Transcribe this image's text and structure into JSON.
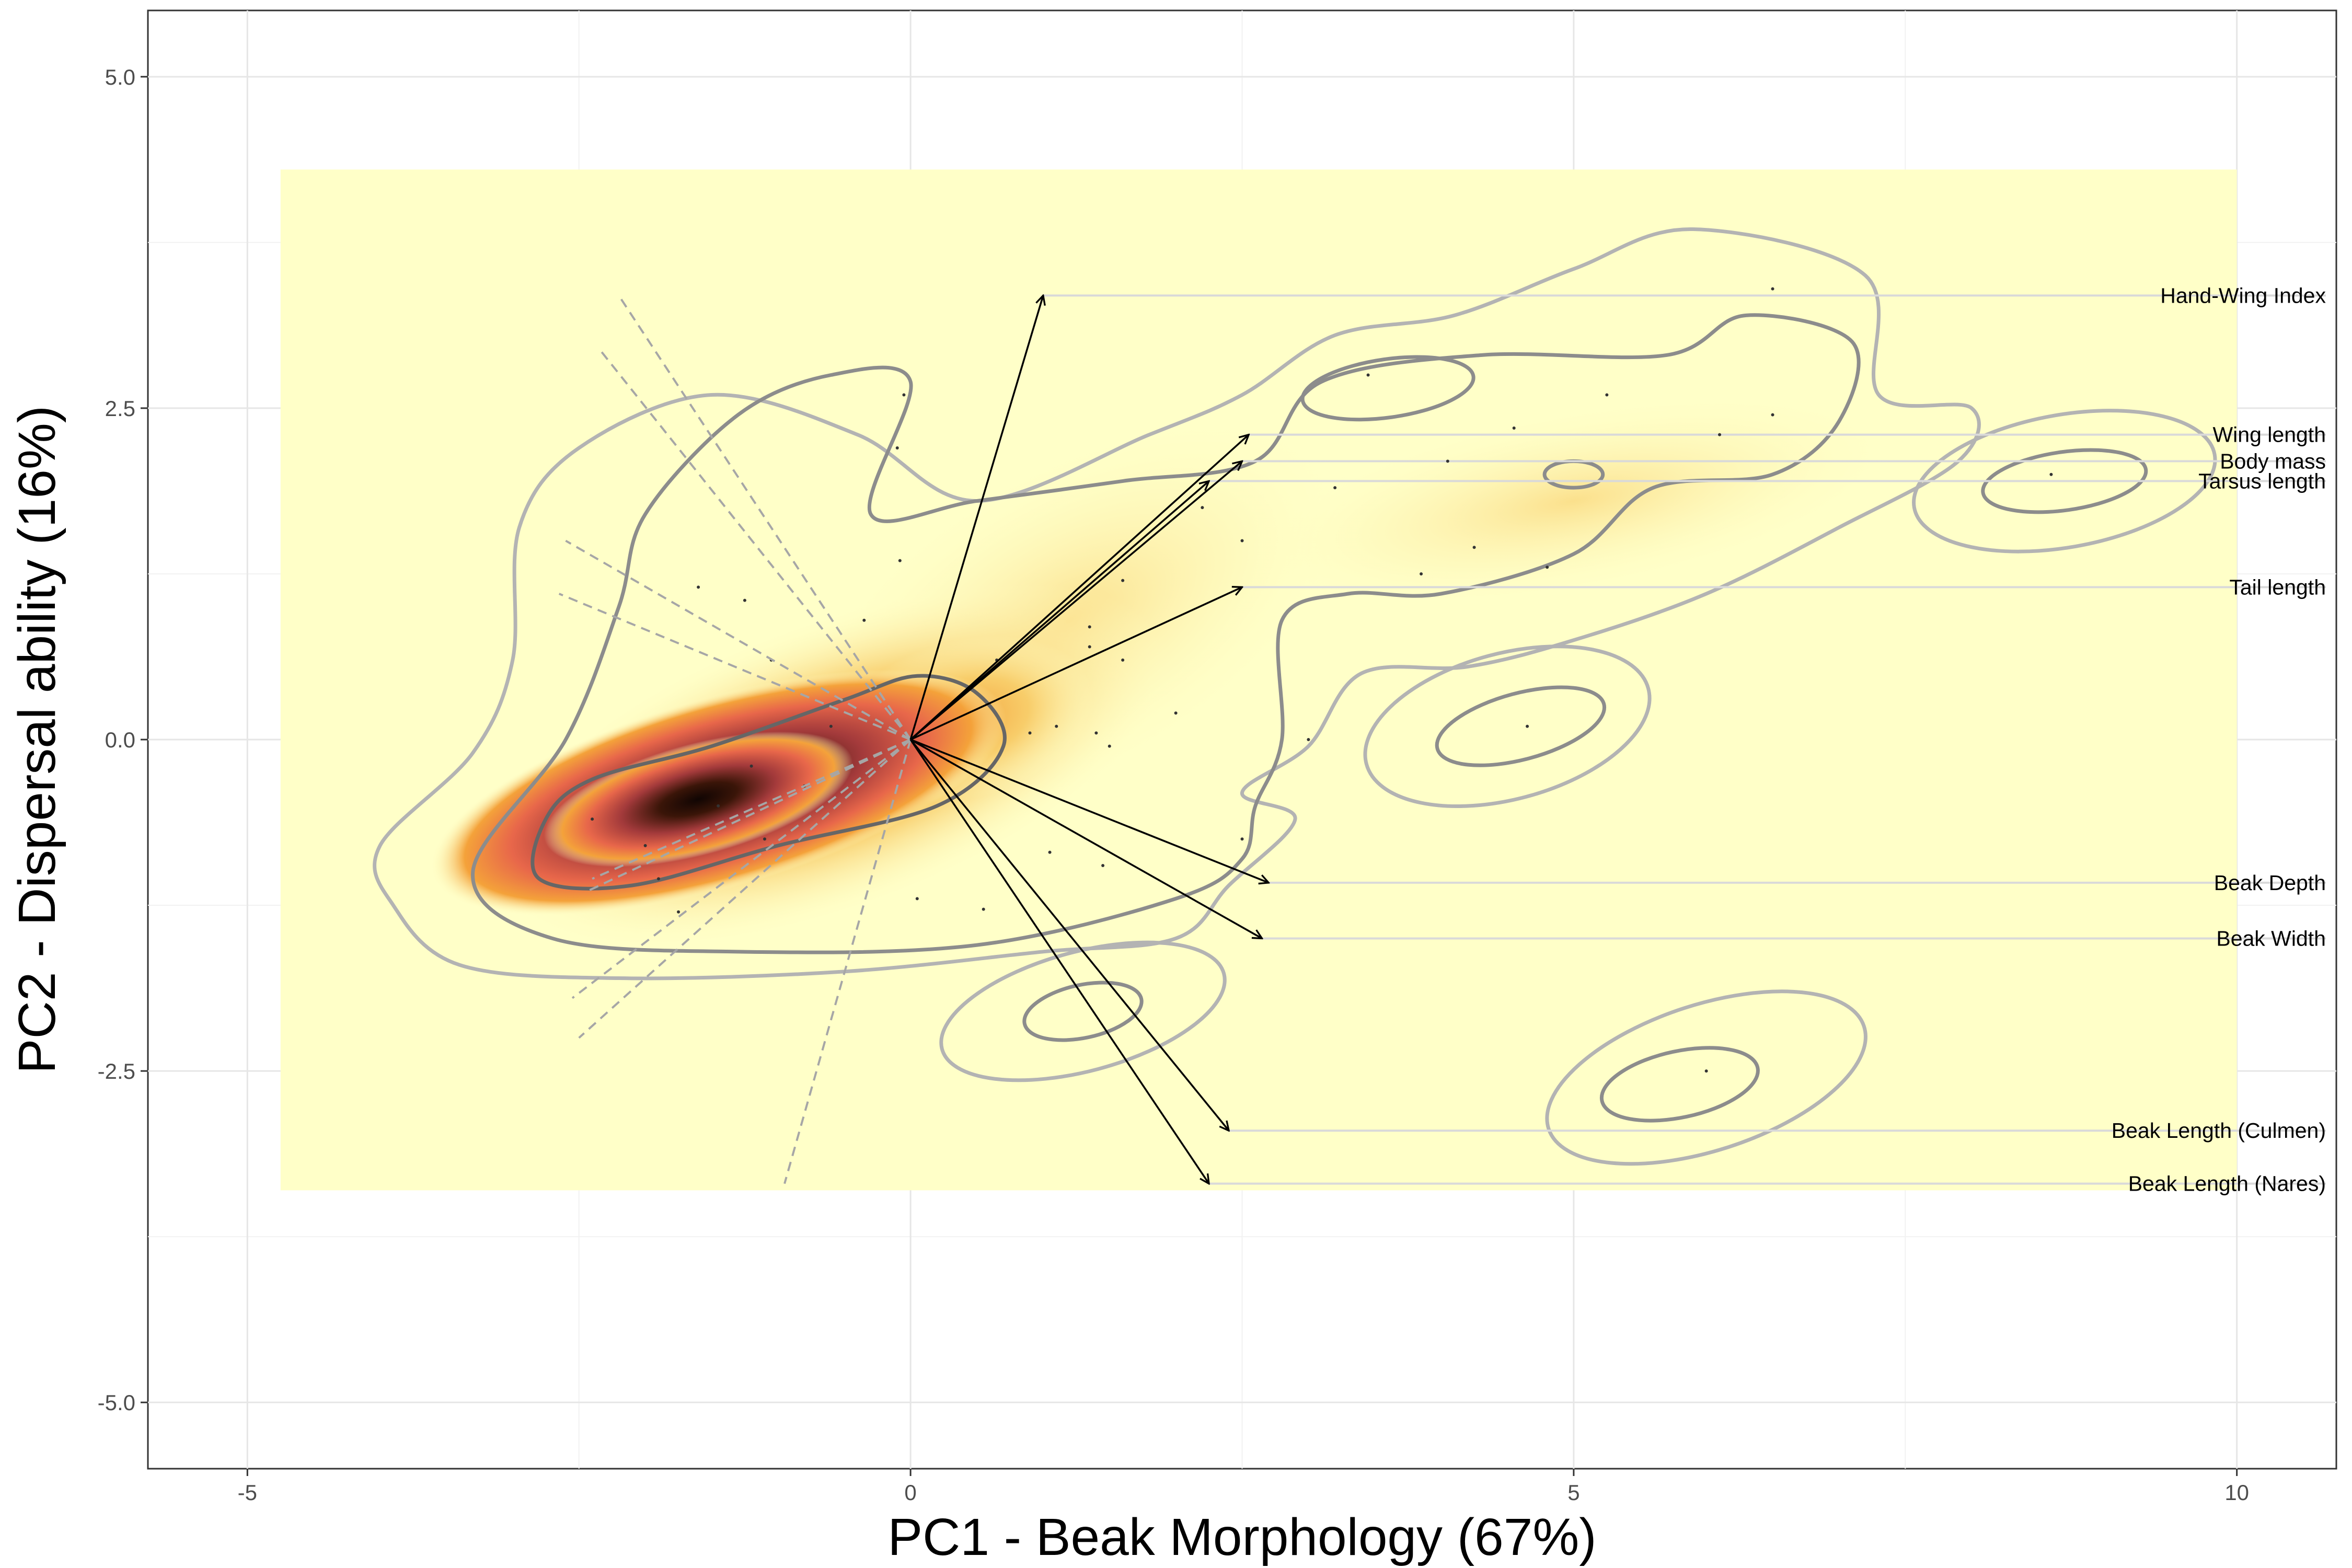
{
  "chart_data": {
    "type": "scatter",
    "xlabel": "PC1 - Beak Morphology (67%)",
    "ylabel": "PC2 - Dispersal ability (16%)",
    "xlim": [
      -5.75,
      10.75
    ],
    "ylim": [
      -5.5,
      5.5
    ],
    "xticks": [
      -5,
      0,
      5,
      10
    ],
    "xtick_labels": [
      "-5",
      "0",
      "5",
      "10"
    ],
    "yticks": [
      5,
      2.5,
      0,
      -2.5,
      -5
    ],
    "ytick_labels": [
      "5.0",
      "2.5",
      "0.0",
      "-2.5",
      "-5.0"
    ],
    "grid": true,
    "density_fill": {
      "xrange": [
        -4.75,
        10
      ],
      "yrange": [
        -3.4,
        4.3
      ],
      "low_color": "#ffffc8",
      "mid_color": "#f4a23a",
      "high_color": "#d0454d",
      "peak_color": "#1a0c06"
    },
    "vectors": [
      {
        "label": "Hand-Wing Index",
        "x": 1.0,
        "y": 3.35
      },
      {
        "label": "Wing length",
        "x": 2.55,
        "y": 2.3
      },
      {
        "label": "Body mass",
        "x": 2.5,
        "y": 2.1
      },
      {
        "label": "Tarsus length",
        "x": 2.25,
        "y": 1.95
      },
      {
        "label": "Tail length",
        "x": 2.5,
        "y": 1.15
      },
      {
        "label": "Beak Depth",
        "x": 2.7,
        "y": -1.08
      },
      {
        "label": "Beak Width",
        "x": 2.65,
        "y": -1.5
      },
      {
        "label": "Beak Length (Culmen)",
        "x": 2.4,
        "y": -2.95
      },
      {
        "label": "Beak Length (Nares)",
        "x": 2.25,
        "y": -3.35
      }
    ],
    "dashed_vectors": [
      {
        "x": -2.2,
        "y": 3.35
      },
      {
        "x": -2.35,
        "y": 2.95
      },
      {
        "x": -2.6,
        "y": 1.5
      },
      {
        "x": -2.65,
        "y": 1.1
      },
      {
        "x": -2.45,
        "y": -1.15
      },
      {
        "x": -2.5,
        "y": -2.25
      },
      {
        "x": -2.55,
        "y": -1.95
      },
      {
        "x": -0.95,
        "y": -3.35
      },
      {
        "x": -2.4,
        "y": -1.05
      }
    ],
    "points": [
      [
        -0.05,
        2.6
      ],
      [
        -0.1,
        2.2
      ],
      [
        -0.08,
        1.35
      ],
      [
        -1.6,
        1.15
      ],
      [
        -1.25,
        1.05
      ],
      [
        -0.35,
        0.9
      ],
      [
        -1.05,
        0.6
      ],
      [
        -0.6,
        0.1
      ],
      [
        -0.8,
        -0.35
      ],
      [
        -1.1,
        -0.75
      ],
      [
        -1.9,
        -1.05
      ],
      [
        -1.75,
        -1.3
      ],
      [
        0.05,
        -1.2
      ],
      [
        0.55,
        -1.28
      ],
      [
        -2.4,
        -0.6
      ],
      [
        0.9,
        0.05
      ],
      [
        1.1,
        0.1
      ],
      [
        1.4,
        0.05
      ],
      [
        1.35,
        0.7
      ],
      [
        1.35,
        0.85
      ],
      [
        1.6,
        1.2
      ],
      [
        1.6,
        0.6
      ],
      [
        2.0,
        0.2
      ],
      [
        1.5,
        -0.05
      ],
      [
        1.05,
        -0.85
      ],
      [
        2.5,
        -0.75
      ],
      [
        2.5,
        1.5
      ],
      [
        3.2,
        1.9
      ],
      [
        3.0,
        0.0
      ],
      [
        2.2,
        1.75
      ],
      [
        3.45,
        2.75
      ],
      [
        4.05,
        2.1
      ],
      [
        4.55,
        2.35
      ],
      [
        4.25,
        1.45
      ],
      [
        3.85,
        1.25
      ],
      [
        4.8,
        1.3
      ],
      [
        5.25,
        2.6
      ],
      [
        6.1,
        2.3
      ],
      [
        6.5,
        2.45
      ],
      [
        6.5,
        3.4
      ],
      [
        4.65,
        0.1
      ],
      [
        6.0,
        -2.5
      ],
      [
        8.6,
        2.0
      ],
      [
        1.45,
        -0.95
      ],
      [
        0.65,
        0.6
      ],
      [
        -1.2,
        -0.2
      ],
      [
        -1.45,
        -0.5
      ],
      [
        -2.0,
        -0.8
      ]
    ]
  }
}
